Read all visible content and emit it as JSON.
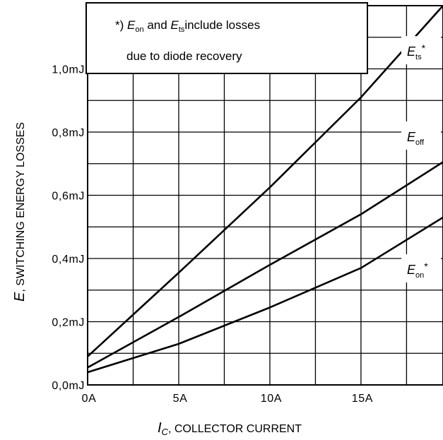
{
  "chart_data": {
    "type": "line",
    "xlabel": {
      "symbol": "I",
      "subscript": "C",
      "text": ", COLLECTOR CURRENT"
    },
    "ylabel": {
      "symbol": "E",
      "text": ", SWITCHING ENERGY LOSSES"
    },
    "x_unit": "A",
    "y_unit": "mJ",
    "xlim": [
      0,
      19.5
    ],
    "ylim": [
      0,
      1.2
    ],
    "grid": true,
    "x_ticks": [
      {
        "value": 0,
        "label": "0A"
      },
      {
        "value": 5,
        "label": "5A"
      },
      {
        "value": 10,
        "label": "10A"
      },
      {
        "value": 15,
        "label": "15A"
      }
    ],
    "y_ticks": [
      {
        "value": 0.0,
        "label": "0,0mJ"
      },
      {
        "value": 0.2,
        "label": "0,2mJ"
      },
      {
        "value": 0.4,
        "label": "0,4mJ"
      },
      {
        "value": 0.6,
        "label": "0,6mJ"
      },
      {
        "value": 0.8,
        "label": "0,8mJ"
      },
      {
        "value": 1.0,
        "label": "1,0mJ"
      }
    ],
    "series": [
      {
        "name": "Ets*",
        "label_main": "E",
        "label_sub": "ts",
        "label_sup": "*",
        "label_y": 1.05,
        "x": [
          0,
          5,
          10,
          15,
          19.5
        ],
        "y": [
          0.09,
          0.355,
          0.625,
          0.91,
          1.2
        ]
      },
      {
        "name": "Eoff",
        "label_main": "E",
        "label_sub": "off",
        "label_sup": "",
        "label_y": 0.78,
        "x": [
          0,
          5,
          10,
          15,
          19.5
        ],
        "y": [
          0.055,
          0.215,
          0.38,
          0.54,
          0.705
        ]
      },
      {
        "name": "Eon*",
        "label_main": "E",
        "label_sub": "on",
        "label_sup": "*",
        "label_y": 0.36,
        "x": [
          0,
          5,
          10,
          15,
          19.5
        ],
        "y": [
          0.04,
          0.13,
          0.245,
          0.37,
          0.53
        ]
      }
    ],
    "annotation": {
      "line1": {
        "prefix": "*) ",
        "e1": "E",
        "s1": "on",
        "mid": " and ",
        "e2": "E",
        "s2": "ts",
        "suffix": "include losses"
      },
      "line2": "due to diode recovery"
    }
  }
}
